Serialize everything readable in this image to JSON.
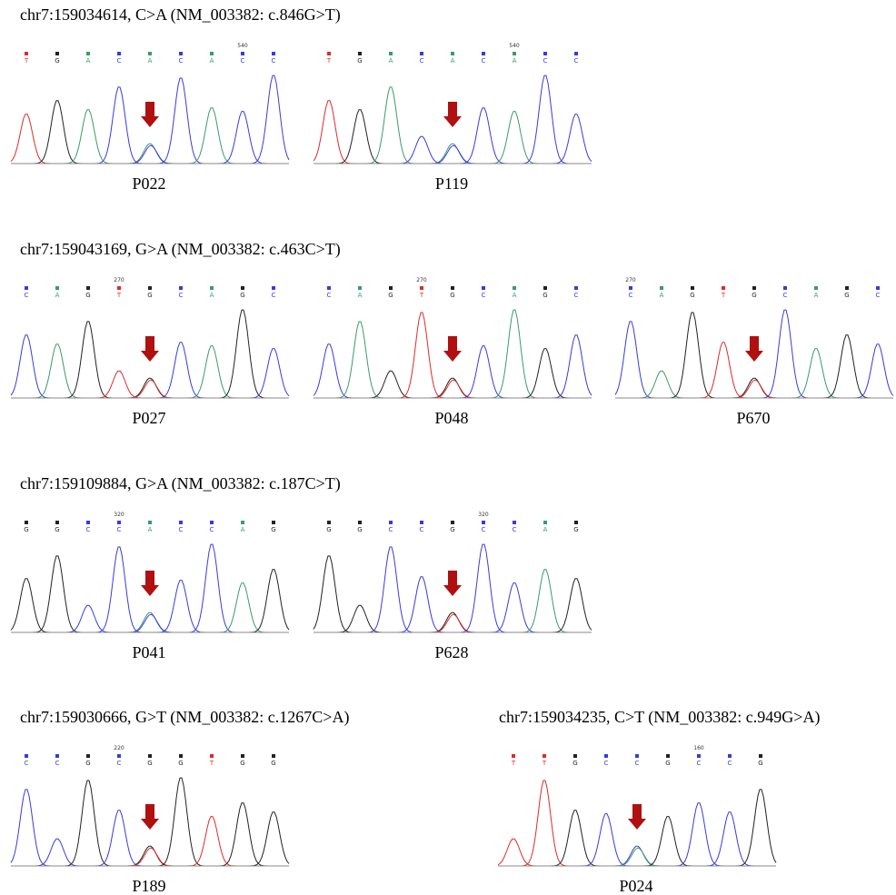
{
  "groups": [
    {
      "title": "chr7:159034614, C>A  (NM_003382: c.846G>T)",
      "panels": [
        {
          "bases": [
            "T",
            "G",
            "A",
            "C",
            "A",
            "C",
            "A",
            "C",
            "C"
          ],
          "position": {
            "base": 7,
            "label": "540"
          },
          "sample": "P022"
        },
        {
          "bases": [
            "T",
            "G",
            "A",
            "C",
            "A",
            "C",
            "A",
            "C",
            "C"
          ],
          "position": {
            "base": 6,
            "label": "540"
          },
          "sample": "P119"
        }
      ]
    },
    {
      "title": "chr7:159043169, G>A  (NM_003382: c.463C>T)",
      "panels": [
        {
          "bases": [
            "C",
            "A",
            "G",
            "T",
            "G",
            "C",
            "A",
            "G",
            "C"
          ],
          "position": {
            "base": 3,
            "label": "270"
          },
          "sample": "P027"
        },
        {
          "bases": [
            "C",
            "A",
            "G",
            "T",
            "G",
            "C",
            "A",
            "G",
            "C"
          ],
          "position": {
            "base": 3,
            "label": "270"
          },
          "sample": "P048"
        },
        {
          "bases": [
            "C",
            "A",
            "G",
            "T",
            "G",
            "C",
            "A",
            "G",
            "C"
          ],
          "position": {
            "base": 0,
            "label": "270"
          },
          "sample": "P670"
        }
      ]
    },
    {
      "title": "chr7:159109884, G>A  (NM_003382: c.187C>T)",
      "panels": [
        {
          "bases": [
            "G",
            "G",
            "C",
            "C",
            "A",
            "C",
            "C",
            "A",
            "G"
          ],
          "position": {
            "base": 3,
            "label": "320"
          },
          "sample": "P041"
        },
        {
          "bases": [
            "G",
            "G",
            "C",
            "C",
            "G",
            "C",
            "C",
            "A",
            "G"
          ],
          "position": {
            "base": 5,
            "label": "320"
          },
          "sample": "P628"
        }
      ]
    },
    {
      "title": "chr7:159030666, G>T  (NM_003382: c.1267C>A)",
      "panels": [
        {
          "bases": [
            "C",
            "C",
            "G",
            "C",
            "G",
            "G",
            "T",
            "G",
            "G"
          ],
          "position": {
            "base": 3,
            "label": "220"
          },
          "sample": "P189"
        }
      ]
    },
    {
      "title": "chr7:159034235, C>T  (NM_003382: c.949G>A)",
      "panels": [
        {
          "bases": [
            "T",
            "T",
            "G",
            "C",
            "C",
            "G",
            "C",
            "C",
            "G"
          ],
          "position": {
            "base": 6,
            "label": "160"
          },
          "sample": "P024"
        }
      ]
    }
  ]
}
